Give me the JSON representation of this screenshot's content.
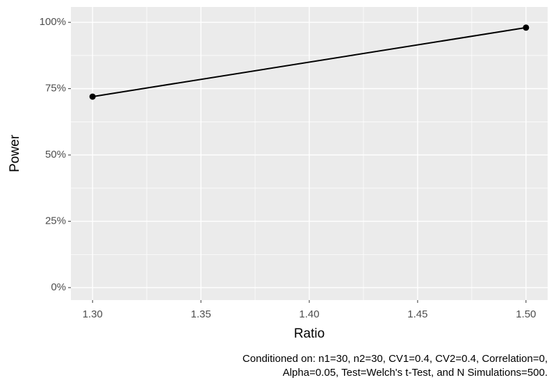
{
  "chart_data": {
    "type": "line",
    "x_label": "Ratio",
    "y_label": "Power",
    "caption": [
      "Conditioned on: n1=30, n2=30, CV1=0.4, CV2=0.4, Correlation=0,",
      "Alpha=0.05, Test=Welch's t-Test, and N Simulations=500."
    ],
    "x": [
      1.3,
      1.5
    ],
    "series": [
      {
        "color": "#000000",
        "values": [
          72,
          98
        ]
      }
    ],
    "xlim": [
      1.29,
      1.51
    ],
    "ylim": [
      -4.7,
      105.8
    ],
    "xticks": [
      {
        "value": 1.3,
        "label": "1.30"
      },
      1.35,
      {
        "value": 1.4,
        "label": "1.40"
      },
      1.45,
      {
        "value": 1.5,
        "label": "1.50"
      }
    ],
    "yticks": [
      {
        "value": 0,
        "label": "0%"
      },
      {
        "value": 25,
        "label": "25%"
      },
      {
        "value": 50,
        "label": "50%"
      },
      {
        "value": 75,
        "label": "75%"
      },
      {
        "value": 100,
        "label": "100%"
      }
    ],
    "grid": true
  }
}
